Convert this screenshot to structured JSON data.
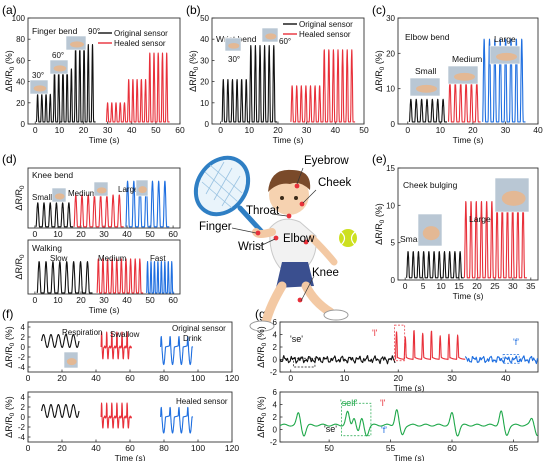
{
  "figure": {
    "colors": {
      "black": "#111111",
      "red": "#e8303a",
      "blue": "#1f6fe0",
      "green": "#1fa84a",
      "frame": "#333333"
    }
  },
  "chart_data": [
    {
      "id": "a",
      "type": "line",
      "panel_label": "(a)",
      "title": "Finger bend",
      "xlabel": "Time (s)",
      "ylabel": "ΔR/R₀ (%)",
      "xlim": [
        -3,
        60
      ],
      "ylim": [
        0,
        100
      ],
      "xticks": [
        0,
        10,
        20,
        30,
        40,
        50,
        60
      ],
      "yticks": [
        0,
        20,
        40,
        60,
        80,
        100
      ],
      "legend": [
        "Original sensor",
        "Healed sensor"
      ],
      "annotations": [
        "30°",
        "60°",
        "90°"
      ],
      "series": [
        {
          "name": "Original sensor",
          "color": "#111111",
          "x_start": 0.5,
          "period": 1.75,
          "peaks": [
            28,
            28,
            28,
            28,
            52,
            52,
            52,
            52,
            52,
            75,
            75,
            75,
            75,
            75
          ]
        },
        {
          "name": "Healed sensor",
          "color": "#e8303a",
          "x_start": 29.5,
          "period": 1.75,
          "peaks": [
            20,
            20,
            20,
            20,
            20,
            42,
            42,
            42,
            42,
            42,
            67,
            67,
            67,
            67,
            67
          ]
        }
      ]
    },
    {
      "id": "b",
      "type": "line",
      "panel_label": "(b)",
      "title": "Wrist bend",
      "xlabel": "Time (s)",
      "ylabel": "ΔR/R₀ (%)",
      "xlim": [
        -3,
        50
      ],
      "ylim": [
        0,
        50
      ],
      "xticks": [
        0,
        10,
        20,
        30,
        40,
        50
      ],
      "yticks": [
        0,
        10,
        20,
        30,
        40,
        50
      ],
      "legend": [
        "Original sensor",
        "Healed sensor"
      ],
      "annotations": [
        "30°",
        "60°"
      ],
      "series": [
        {
          "name": "Original sensor",
          "color": "#111111",
          "x_start": 0.5,
          "period": 1.6,
          "peaks": [
            21,
            21,
            21,
            21,
            21,
            21,
            37,
            37,
            37,
            37,
            37,
            37
          ]
        },
        {
          "name": "Healed sensor",
          "color": "#e8303a",
          "x_start": 24.5,
          "period": 1.6,
          "peaks": [
            18,
            18,
            18,
            18,
            18,
            18,
            18,
            35,
            35,
            35,
            35,
            35,
            35,
            35
          ]
        }
      ]
    },
    {
      "id": "c",
      "type": "line",
      "panel_label": "(c)",
      "title": "Elbow bend",
      "xlabel": "Time (s)",
      "ylabel": "ΔR/R₀ (%)",
      "xlim": [
        -3,
        40
      ],
      "ylim": [
        0,
        30
      ],
      "xticks": [
        0,
        10,
        20,
        30,
        40
      ],
      "yticks": [
        0,
        10,
        20,
        30
      ],
      "annotations": [
        "Small",
        "Medium",
        "Large"
      ],
      "series": [
        {
          "name": "Small",
          "color": "#111111",
          "x_start": 0.5,
          "period": 1.65,
          "peaks": [
            7,
            7,
            7,
            7,
            7,
            7,
            7
          ]
        },
        {
          "name": "Medium",
          "color": "#e8303a",
          "x_start": 12.5,
          "period": 1.65,
          "peaks": [
            12,
            12,
            12,
            12,
            12,
            12
          ]
        },
        {
          "name": "Large",
          "color": "#1f6fe0",
          "x_start": 23,
          "period": 1.65,
          "peaks": [
            24,
            24,
            24,
            24,
            24,
            24,
            24,
            24
          ]
        }
      ]
    },
    {
      "id": "d1",
      "type": "line",
      "panel_label": "(d)",
      "title": "Knee bend",
      "xlabel": "",
      "ylabel": "ΔR/R₀",
      "xlim": [
        -3,
        63
      ],
      "ylim": [
        0,
        1
      ],
      "xticks": [
        0,
        10,
        20,
        30,
        40,
        50,
        60
      ],
      "yticks": [],
      "annotations": [
        "Small",
        "Medium",
        "Large"
      ],
      "series": [
        {
          "name": "Small",
          "color": "#111111",
          "x_start": 0.5,
          "period": 2.7,
          "peaks": [
            0.42,
            0.42,
            0.42,
            0.42,
            0.42,
            0.42
          ]
        },
        {
          "name": "Medium",
          "color": "#e8303a",
          "x_start": 17,
          "period": 2.7,
          "peaks": [
            0.55,
            0.55,
            0.55,
            0.55,
            0.55,
            0.55,
            0.55,
            0.55
          ]
        },
        {
          "name": "Large",
          "color": "#1f6fe0",
          "x_start": 39.5,
          "period": 2.7,
          "peaks": [
            0.78,
            0.78,
            0.78,
            0.78,
            0.78,
            0.78,
            0.78
          ]
        }
      ]
    },
    {
      "id": "d2",
      "type": "line",
      "title": "Walking",
      "xlabel": "Time (s)",
      "ylabel": "ΔR/R₀",
      "xlim": [
        -3,
        63
      ],
      "ylim": [
        0,
        1
      ],
      "xticks": [
        0,
        10,
        20,
        30,
        40,
        50,
        60
      ],
      "yticks": [],
      "annotations": [
        "Slow",
        "Medium",
        "Fast"
      ],
      "series": [
        {
          "name": "Slow",
          "color": "#111111",
          "x_start": 1,
          "period": 3.0,
          "peaks": [
            0.6,
            0.6,
            0.6,
            0.6,
            0.6,
            0.6,
            0.6,
            0.6
          ]
        },
        {
          "name": "Medium",
          "color": "#e8303a",
          "x_start": 27,
          "period": 2.0,
          "peaks": [
            0.65,
            0.65,
            0.65,
            0.65,
            0.65,
            0.65,
            0.65,
            0.65,
            0.65,
            0.65
          ]
        },
        {
          "name": "Fast",
          "color": "#1f6fe0",
          "x_start": 48.5,
          "period": 1.5,
          "peaks": [
            0.6,
            0.6,
            0.6,
            0.6,
            0.6,
            0.6,
            0.6,
            0.6
          ]
        }
      ]
    },
    {
      "id": "e",
      "type": "line",
      "panel_label": "(e)",
      "title": "Cheek bulging",
      "xlabel": "Time (s)",
      "ylabel": "ΔR/R₀ (%)",
      "xlim": [
        -2,
        37
      ],
      "ylim": [
        0,
        15
      ],
      "xticks": [
        0,
        5,
        10,
        15,
        20,
        25,
        30,
        35
      ],
      "yticks": [
        0,
        5,
        10,
        15
      ],
      "annotations": [
        "Small",
        "Large"
      ],
      "series": [
        {
          "name": "Small",
          "color": "#111111",
          "x_start": 0.4,
          "period": 1.45,
          "peaks": [
            3.8,
            3.8,
            3.8,
            3.8,
            3.8,
            3.8,
            3.8,
            3.8,
            3.8,
            3.8,
            3.8
          ]
        },
        {
          "name": "Large",
          "color": "#e8303a",
          "x_start": 16.5,
          "period": 1.45,
          "peaks": [
            10.5,
            10.5,
            10.5,
            10.5,
            10.5,
            10.5,
            10.5,
            10.5,
            10.5,
            10.5,
            10.5,
            10.5
          ]
        }
      ]
    },
    {
      "id": "f1",
      "type": "line",
      "panel_label": "(f)",
      "xlabel": "",
      "ylabel": "ΔR/R₀ (%)",
      "xlim": [
        0,
        120
      ],
      "ylim": [
        -5,
        5
      ],
      "xticks": [
        0,
        20,
        40,
        60,
        80,
        100,
        120
      ],
      "yticks": [
        -4,
        -2,
        0,
        2,
        4
      ],
      "annotations": [
        "Respiration",
        "Swallow",
        "Drink",
        "Original sensor"
      ],
      "series": [
        {
          "name": "Respiration",
          "color": "#111111",
          "x_start": 8,
          "x_end": 30,
          "kind": "resp",
          "amp": 1.3,
          "period": 4.4
        },
        {
          "name": "Swallow",
          "color": "#e8303a",
          "x_start": 43,
          "x_end": 61,
          "kind": "swallow",
          "amp": 3.0,
          "period": 3.0
        },
        {
          "name": "Drink",
          "color": "#1f6fe0",
          "x_start": 78,
          "x_end": 97,
          "kind": "drink",
          "amp": 3.5,
          "period": 5.2
        }
      ]
    },
    {
      "id": "f2",
      "type": "line",
      "xlabel": "Time (s)",
      "ylabel": "ΔR/R₀ (%)",
      "xlim": [
        0,
        120
      ],
      "ylim": [
        -5,
        5
      ],
      "xticks": [
        0,
        20,
        40,
        60,
        80,
        100,
        120
      ],
      "yticks": [
        -4,
        -2,
        0,
        2,
        4
      ],
      "annotations": [
        "Healed sensor"
      ],
      "series": [
        {
          "name": "Respiration",
          "color": "#111111",
          "x_start": 8,
          "x_end": 30,
          "kind": "resp",
          "amp": 1.3,
          "period": 4.4
        },
        {
          "name": "Swallow",
          "color": "#e8303a",
          "x_start": 43,
          "x_end": 61,
          "kind": "swallow",
          "amp": 2.8,
          "period": 3.0
        },
        {
          "name": "Drink",
          "color": "#1f6fe0",
          "x_start": 78,
          "x_end": 97,
          "kind": "drink",
          "amp": 3.2,
          "period": 5.2
        }
      ]
    },
    {
      "id": "g1",
      "type": "line",
      "panel_label": "(g)",
      "xlabel": "Time (s)",
      "ylabel": "ΔR/R₀ (%)",
      "xlim": [
        -2,
        46
      ],
      "ylim": [
        -2,
        6
      ],
      "xticks": [
        0,
        10,
        20,
        30,
        40
      ],
      "yticks": [
        -2,
        0,
        2,
        4,
        6
      ],
      "annotations": [
        "'se'",
        "'l'",
        "'f'"
      ],
      "series": [
        {
          "name": "'se'",
          "color": "#111111",
          "x_start": -2,
          "x_end": 19.5,
          "kind": "noise"
        },
        {
          "name": "'l'",
          "color": "#e8303a",
          "x_start": 19.5,
          "x_end": 32.5,
          "kind": "spikes",
          "peaks": [
            4.5,
            3.6,
            4.7,
            4.2,
            4.6,
            3.8,
            4.1,
            3.9
          ]
        },
        {
          "name": "'f'",
          "color": "#1f6fe0",
          "x_start": 32.5,
          "x_end": 46,
          "kind": "noise"
        }
      ]
    },
    {
      "id": "g2",
      "type": "line",
      "xlabel": "Time (s)",
      "ylabel": "ΔR/R₀ (%)",
      "xlim": [
        46,
        67
      ],
      "ylim": [
        -2,
        6
      ],
      "xticks": [
        50,
        55,
        60,
        65
      ],
      "yticks": [
        -2,
        0,
        2,
        4,
        6
      ],
      "annotations": [
        "'self'",
        "'l'",
        "'se'",
        "'f'"
      ],
      "series": [
        {
          "name": "'self'",
          "color": "#1fa84a",
          "x_start": 46,
          "x_end": 67,
          "kind": "self",
          "peaks_x": [
            47.5,
            51.5,
            52.0,
            52.6,
            55.5,
            60.0,
            64.0,
            66.5
          ],
          "peaks_y": [
            2.6,
            2.8,
            3.4,
            2.5,
            3.2,
            2.6,
            2.9,
            1.8
          ]
        }
      ]
    }
  ],
  "illustration": {
    "labels": {
      "eyebrow": "Eyebrow",
      "cheek": "Cheek",
      "throat": "Throat",
      "finger": "Finger",
      "wrist": "Wrist",
      "elbow": "Elbow",
      "knee": "Knee"
    }
  }
}
